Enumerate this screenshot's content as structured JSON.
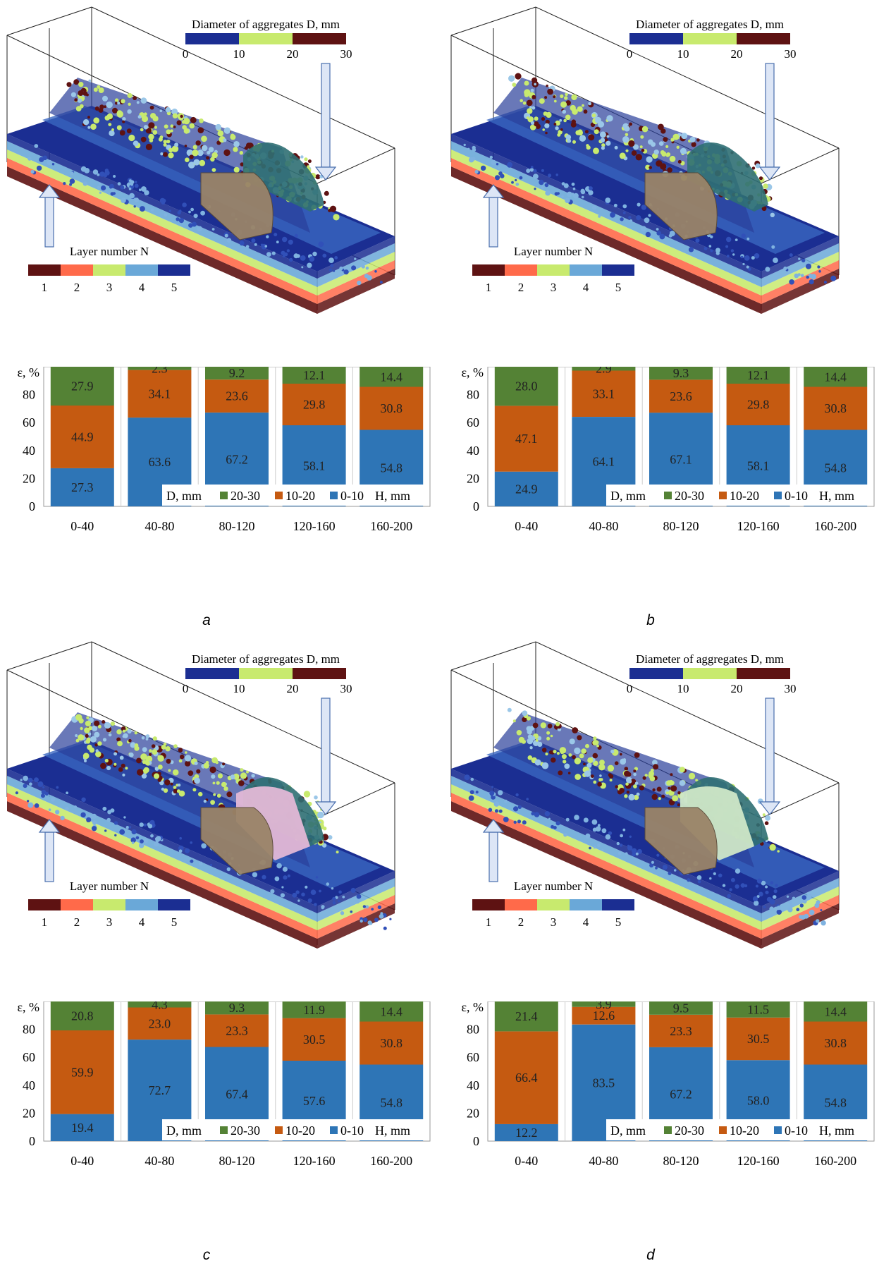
{
  "figure": {
    "diameter_scale": {
      "title": "Diameter of aggregates D, mm",
      "ticks": [
        "0",
        "10",
        "20",
        "30"
      ],
      "colors": [
        "#1b2e92",
        "#c8ea6e",
        "#5e1212"
      ]
    },
    "layer_scale": {
      "title": "Layer number N",
      "labels": [
        "1",
        "2",
        "3",
        "4",
        "5"
      ],
      "colors": [
        "#5e1212",
        "#ff6a4a",
        "#c8ea6e",
        "#6aa8d8",
        "#1b2e92"
      ]
    },
    "series_colors": {
      "0-10": "#2e75b6",
      "10-20": "#c55a11",
      "20-30": "#548235"
    },
    "legend": {
      "d_label": "D, mm",
      "h_label": "H, mm",
      "entries": [
        "20-30",
        "10-20",
        "0-10"
      ]
    }
  },
  "panels": [
    {
      "caption": "a",
      "wall_color": null
    },
    {
      "caption": "b",
      "wall_color": null
    },
    {
      "caption": "c",
      "wall_color": "#e3b8d6"
    },
    {
      "caption": "d",
      "wall_color": "#cfe7c7"
    }
  ],
  "chart_data": [
    {
      "type": "bar",
      "ylabel": "ε, %",
      "ylim": [
        0,
        100
      ],
      "yticks": [
        0,
        20,
        40,
        60,
        80
      ],
      "categories": [
        "0-40",
        "40-80",
        "80-120",
        "120-160",
        "160-200"
      ],
      "series": [
        {
          "name": "0-10",
          "values": [
            27.3,
            63.6,
            67.2,
            58.1,
            54.8
          ]
        },
        {
          "name": "10-20",
          "values": [
            44.9,
            34.1,
            23.6,
            29.8,
            30.8
          ]
        },
        {
          "name": "20-30",
          "values": [
            27.9,
            2.3,
            9.2,
            12.1,
            14.4
          ]
        }
      ]
    },
    {
      "type": "bar",
      "ylabel": "ε, %",
      "ylim": [
        0,
        100
      ],
      "yticks": [
        0,
        20,
        40,
        60,
        80
      ],
      "categories": [
        "0-40",
        "40-80",
        "80-120",
        "120-160",
        "160-200"
      ],
      "series": [
        {
          "name": "0-10",
          "values": [
            24.9,
            64.1,
            67.1,
            58.1,
            54.8
          ]
        },
        {
          "name": "10-20",
          "values": [
            47.1,
            33.1,
            23.6,
            29.8,
            30.8
          ]
        },
        {
          "name": "20-30",
          "values": [
            28.0,
            2.9,
            9.3,
            12.1,
            14.4
          ]
        }
      ]
    },
    {
      "type": "bar",
      "ylabel": "ε, %",
      "ylim": [
        0,
        100
      ],
      "yticks": [
        0,
        20,
        40,
        60,
        80
      ],
      "categories": [
        "0-40",
        "40-80",
        "80-120",
        "120-160",
        "160-200"
      ],
      "series": [
        {
          "name": "0-10",
          "values": [
            19.4,
            72.7,
            67.4,
            57.6,
            54.8
          ]
        },
        {
          "name": "10-20",
          "values": [
            59.9,
            23.0,
            23.3,
            30.5,
            30.8
          ]
        },
        {
          "name": "20-30",
          "values": [
            20.8,
            4.3,
            9.3,
            11.9,
            14.4
          ]
        }
      ]
    },
    {
      "type": "bar",
      "ylabel": "ε, %",
      "ylim": [
        0,
        100
      ],
      "yticks": [
        0,
        20,
        40,
        60,
        80
      ],
      "categories": [
        "0-40",
        "40-80",
        "80-120",
        "120-160",
        "160-200"
      ],
      "series": [
        {
          "name": "0-10",
          "values": [
            12.2,
            83.5,
            67.2,
            58.0,
            54.8
          ]
        },
        {
          "name": "10-20",
          "values": [
            66.4,
            12.6,
            23.3,
            30.5,
            30.8
          ]
        },
        {
          "name": "20-30",
          "values": [
            21.4,
            3.9,
            9.5,
            11.5,
            14.4
          ]
        }
      ]
    }
  ]
}
